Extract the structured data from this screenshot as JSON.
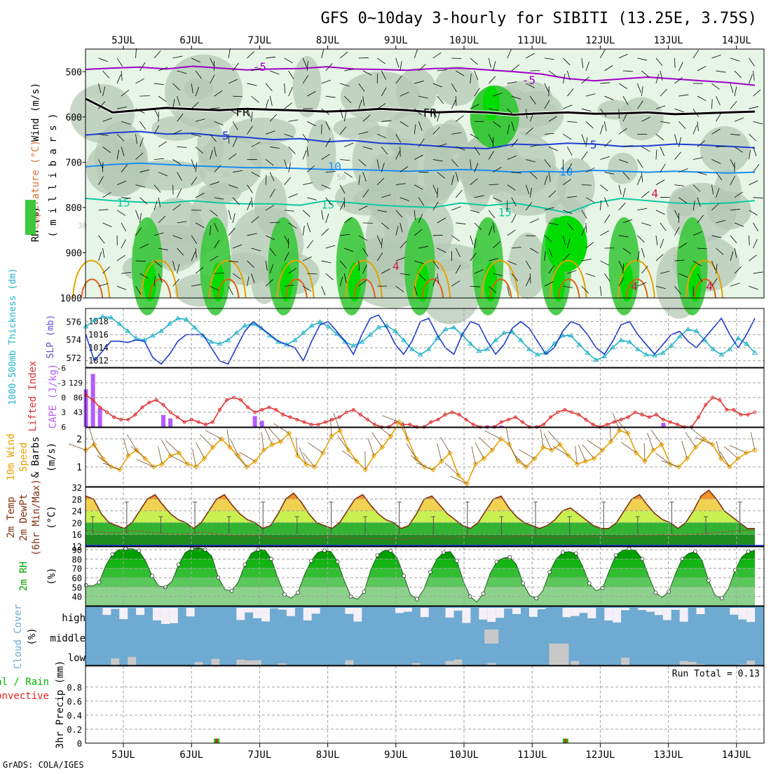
{
  "title": "GFS 0~10day 3-hourly for SIBITI (13.25E, 3.75S)",
  "footer": "GrADS: COLA/IGES",
  "run_total": "Run Total = 0.13",
  "days": [
    "5JUL",
    "6JUL",
    "7JUL",
    "8JUL",
    "9JUL",
    "10JUL",
    "11JUL",
    "12JUL",
    "13JUL",
    "14JUL"
  ],
  "colors": {
    "rh_light": "#e6f5e6",
    "rh_gray": "#b4c8b4",
    "rh_green": "#3cc83c",
    "rh_bright": "#00dc00",
    "t_minus5": "#a000c8",
    "t_fr": "#000000",
    "t_5": "#1e3cd2",
    "t_10": "#1e8cf0",
    "t_15": "#10c8a0",
    "t_20": "#e8a000",
    "t_25": "#e06010",
    "t_30": "#d01450",
    "slp": "#1e3cc8",
    "thickness": "#20b4c8",
    "lifted": "#e03030",
    "cape": "#b45aff",
    "wind": "#e8a000",
    "temp_line": "#803010",
    "dew_line": "#8c5a32",
    "rh2m": "#00a000",
    "cloud_fill": "#6eaad2",
    "cloud_clear": "#f5f0f8",
    "cloud_low": "#c8c8c8",
    "precip_total": "#00c800",
    "precip_conv": "#e02020"
  },
  "labels": {
    "wind_ms": "Wind (m/s)",
    "temperature": "Temperature (°C)",
    "rh_pct": "RH (%)",
    "millibars": "( m i l l i b a r s )",
    "thickness": "1000-500mb Thickness (dm)",
    "slp": "SLP (mb)",
    "lifted": "Lifted Index",
    "cape": "CAPE (J/kg)",
    "wind10m_1": "10m Wind",
    "wind10m_2": "Speed",
    "wind10m_3": "& Barbs",
    "wind10m_4": "(m/s)",
    "temp_1": "2m Temp",
    "temp_2": "2m DewPt",
    "temp_3": "(6hr Min/Max)",
    "temp_4": "(°C)",
    "rh2m_1": "2m RH",
    "rh2m_2": "(%)",
    "cloud_1": "Cloud Cover",
    "cloud_2": "(%)",
    "cloud_high": "high",
    "cloud_middle": "middle",
    "cloud_low": "low",
    "precip_1": "Total / Rain",
    "precip_2": "Convective",
    "precip_3": "3hr Precip (mm)"
  },
  "chart_data": [
    {
      "type": "heatmap",
      "name": "Upper-air cross section",
      "ylabel": "millibars",
      "y_ticks": [
        "500",
        "600",
        "700",
        "800",
        "900",
        "1000"
      ],
      "ylim": [
        1000,
        450
      ],
      "contour_labels": [
        {
          "text": "-5",
          "color": "t_minus5"
        },
        {
          "text": "-5",
          "color": "t_minus5"
        },
        {
          "text": "FR",
          "color": "t_fr"
        },
        {
          "text": "FR",
          "color": "t_fr"
        },
        {
          "text": "5",
          "color": "t_5"
        },
        {
          "text": "5",
          "color": "t_5"
        },
        {
          "text": "10",
          "color": "t_10"
        },
        {
          "text": "10",
          "color": "t_10"
        },
        {
          "text": "15",
          "color": "t_15"
        },
        {
          "text": "15",
          "color": "t_15"
        },
        {
          "text": "15",
          "color": "t_15"
        },
        {
          "text": "30",
          "color": "rh_gray"
        },
        {
          "text": "50",
          "color": "rh_gray"
        },
        {
          "text": "30",
          "color": "rh_gray"
        },
        {
          "text": "50",
          "color": "rh_gray"
        },
        {
          "text": "50",
          "color": "rh_gray"
        },
        {
          "text": "4",
          "color": "t_30"
        },
        {
          "text": "4",
          "color": "t_30"
        },
        {
          "text": "4",
          "color": "t_30"
        },
        {
          "text": "4",
          "color": "t_30"
        }
      ],
      "contours": [
        {
          "name": "-5",
          "color": "t_minus5",
          "p": [
            495,
            492,
            490,
            494,
            488,
            492,
            496,
            494,
            493,
            489,
            494,
            495,
            497,
            493,
            492,
            496,
            500,
            505,
            515,
            520,
            516,
            512,
            516,
            520,
            524,
            530
          ]
        },
        {
          "name": "FR",
          "color": "t_fr",
          "p": [
            560,
            590,
            585,
            580,
            583,
            585,
            582,
            584,
            586,
            588,
            586,
            582,
            585,
            590,
            588,
            590,
            595,
            592,
            590,
            593,
            592,
            590,
            594,
            592,
            590,
            588
          ]
        },
        {
          "name": "5",
          "color": "t_5",
          "p": [
            640,
            635,
            632,
            638,
            636,
            642,
            645,
            650,
            648,
            655,
            652,
            658,
            660,
            664,
            668,
            670,
            660,
            662,
            658,
            660,
            665,
            664,
            660,
            662,
            665,
            668
          ]
        },
        {
          "name": "10",
          "color": "t_10",
          "p": [
            710,
            705,
            702,
            705,
            708,
            710,
            712,
            712,
            714,
            716,
            716,
            718,
            720,
            718,
            716,
            718,
            722,
            720,
            722,
            718,
            720,
            722,
            720,
            722,
            724,
            722
          ]
        },
        {
          "name": "15",
          "color": "t_15",
          "p": [
            780,
            785,
            788,
            790,
            785,
            790,
            792,
            792,
            795,
            785,
            790,
            795,
            798,
            800,
            790,
            796,
            790,
            800,
            812,
            790,
            780,
            785,
            790,
            792,
            790,
            785
          ]
        }
      ],
      "wind_profiles": 36
    },
    {
      "type": "line",
      "name": "SLP and 1000-500mb thickness",
      "series": [
        {
          "name": "SLP (mb)",
          "color": "slp",
          "ylim": [
            1011,
            1020
          ],
          "ticks": [
            "1012",
            "1014",
            "1016",
            "1018"
          ],
          "values": [
            1016,
            1012,
            1013.5,
            1015,
            1015,
            1014.8,
            1015.2,
            1015,
            1012.5,
            1011.5,
            1013,
            1015,
            1016,
            1016,
            1016,
            1014,
            1012,
            1011.5,
            1014,
            1016.5,
            1018,
            1017,
            1016,
            1015,
            1014.5,
            1014,
            1012,
            1015,
            1017.5,
            1018,
            1016.5,
            1015,
            1013,
            1016,
            1018.5,
            1019,
            1017,
            1014.5,
            1013,
            1015,
            1018,
            1018.5,
            1016,
            1014,
            1013,
            1016,
            1018,
            1017.5,
            1015,
            1013,
            1014.5,
            1017,
            1018,
            1017,
            1015,
            1013,
            1014,
            1016.5,
            1018,
            1017.5,
            1016,
            1014,
            1013,
            1015,
            1017.5,
            1018,
            1016,
            1014.5,
            1013,
            1014.5,
            1016,
            1016.5,
            1015,
            1014,
            1015.5,
            1017,
            1018.5,
            1016,
            1014,
            1016,
            1018.5
          ]
        },
        {
          "name": "1000-500mb Thickness (dm)",
          "color": "thickness",
          "ylim": [
            571,
            577.5
          ],
          "ticks": [
            "572",
            "574",
            "576"
          ],
          "values": [
            575.5,
            576.2,
            576.6,
            576.5,
            575.8,
            575.0,
            574.2,
            574.0,
            574.5,
            575.0,
            575.8,
            576.4,
            576.3,
            575.4,
            574.5,
            573.8,
            573.6,
            574.0,
            574.8,
            575.6,
            575.8,
            575.3,
            574.5,
            573.8,
            573.5,
            574.0,
            574.8,
            575.6,
            576.0,
            575.5,
            574.7,
            573.8,
            573.4,
            573.8,
            574.6,
            575.4,
            575.6,
            575.0,
            574.0,
            573.0,
            572.4,
            573.0,
            574.2,
            575.2,
            575.4,
            574.6,
            573.6,
            572.8,
            573.0,
            574.0,
            574.8,
            574.9,
            574.0,
            573.0,
            572.4,
            572.6,
            573.6,
            574.5,
            574.5,
            573.5,
            572.6,
            571.8,
            572.2,
            573.2,
            574.0,
            573.8,
            573.0,
            572.4,
            572.3,
            572.6,
            573.4,
            574.4,
            575.2,
            575.0,
            574.0,
            573.0,
            572.4,
            573.0,
            574.2,
            573.6,
            572.6
          ]
        }
      ]
    },
    {
      "type": "bar",
      "name": "Lifted Index and CAPE",
      "li_ticks": [
        "-6",
        "-3",
        "0",
        "3",
        "6"
      ],
      "cape_ticks": [
        "43",
        "86",
        "129"
      ],
      "li_ylim": [
        -6,
        6
      ],
      "cape_ylim": [
        0,
        172
      ],
      "lifted_index": [
        -0.5,
        0.5,
        2.0,
        3.0,
        4.0,
        4.5,
        4.5,
        3.5,
        2.0,
        1.0,
        0.5,
        1.5,
        3.0,
        4.0,
        5.0,
        4.5,
        5.0,
        5.5,
        5.0,
        2.5,
        0.5,
        0.0,
        0.5,
        2.0,
        3.0,
        2.5,
        2.0,
        2.5,
        3.5,
        4.0,
        4.5,
        5.0,
        5.5,
        5.5,
        5.0,
        4.5,
        4.0,
        3.0,
        2.5,
        3.5,
        4.5,
        5.5,
        6.0,
        6.0,
        5.0,
        5.5,
        5.5,
        6.0,
        6.0,
        5.0,
        4.5,
        3.5,
        3.0,
        3.5,
        4.5,
        5.5,
        6.0,
        6.0,
        6.0,
        5.0,
        4.5,
        4.0,
        5.0,
        6.0,
        6.0,
        5.5,
        4.0,
        3.0,
        2.5,
        3.0,
        3.5,
        4.5,
        5.5,
        6.0,
        5.5,
        5.0,
        4.5,
        4.0,
        3.0,
        3.5,
        4.0,
        3.5,
        4.5,
        5.0,
        5.5,
        6.0,
        6.0,
        4.0,
        1.5,
        0.0,
        0.5,
        2.5,
        2.5,
        3.5,
        3.5,
        3.0
      ],
      "cape": [
        {
          "i": 0,
          "v": 110
        },
        {
          "i": 1,
          "v": 155
        },
        {
          "i": 2,
          "v": 55
        },
        {
          "i": 11,
          "v": 35
        },
        {
          "i": 12,
          "v": 25
        },
        {
          "i": 24,
          "v": 32
        },
        {
          "i": 25,
          "v": 18
        },
        {
          "i": 57,
          "v": 4
        },
        {
          "i": 58,
          "v": 4
        },
        {
          "i": 59,
          "v": 4
        },
        {
          "i": 82,
          "v": 12
        }
      ]
    },
    {
      "type": "line",
      "name": "10m Wind Speed and Barbs",
      "ylim": [
        0.3,
        2.4
      ],
      "ticks": [
        "1",
        "2"
      ],
      "values": [
        1.6,
        1.8,
        1.3,
        1.0,
        0.9,
        1.4,
        1.6,
        1.3,
        1.0,
        1.1,
        1.4,
        1.5,
        1.1,
        1.0,
        1.3,
        1.7,
        2.0,
        1.7,
        1.4,
        1.0,
        1.2,
        1.6,
        1.8,
        1.9,
        2.2,
        1.4,
        1.1,
        1.0,
        1.5,
        2.1,
        2.3,
        1.6,
        1.2,
        0.9,
        1.4,
        1.7,
        2.1,
        2.6,
        2.0,
        1.3,
        1.0,
        0.9,
        1.2,
        1.5,
        0.7,
        0.4,
        1.1,
        1.3,
        1.6,
        2.0,
        1.8,
        1.2,
        1.0,
        1.3,
        1.7,
        1.6,
        1.8,
        1.4,
        1.1,
        1.2,
        1.3,
        1.6,
        1.9,
        2.3,
        2.2,
        1.5,
        1.2,
        1.6,
        1.8,
        1.1,
        1.0,
        1.3,
        1.7,
        2.0,
        1.8,
        1.3,
        1.0,
        1.3,
        1.5,
        1.6
      ]
    },
    {
      "type": "area",
      "name": "2m Temp and DewPt",
      "ylim": [
        12,
        32
      ],
      "ticks": [
        "12",
        "16",
        "20",
        "24",
        "28",
        "32"
      ],
      "temp": [
        29,
        28,
        23,
        20,
        19,
        18,
        20,
        24,
        28,
        29.5,
        26,
        23,
        21,
        20,
        18,
        20,
        24,
        28,
        29.5,
        26,
        23,
        21,
        20,
        18,
        19,
        23,
        28,
        30,
        27,
        23,
        20,
        19,
        18,
        20,
        24,
        28,
        29.5,
        26,
        23,
        21,
        20,
        18,
        19,
        23,
        28,
        29,
        26,
        23,
        21,
        19,
        18,
        20,
        24,
        28,
        29,
        25,
        22,
        20,
        19,
        18,
        19,
        21,
        24,
        25,
        23,
        21,
        19,
        18,
        18,
        20,
        24,
        28,
        29.5,
        26,
        23,
        21,
        20,
        18,
        20,
        24,
        29,
        31,
        28,
        24,
        22,
        20,
        18,
        18
      ],
      "dewpt": [
        17.5,
        17,
        16.8,
        16.5,
        16.6,
        17,
        17.2,
        17,
        16.8,
        16.5,
        16.4,
        16,
        16,
        16.2,
        16.6,
        16.8,
        16.4,
        16,
        15.8,
        15.6,
        15.4,
        15.6,
        15.8,
        15.2,
        14.6,
        14.5,
        14.8,
        15,
        14.6,
        14.8,
        15,
        15.4,
        15.2,
        15,
        14.8,
        14.7,
        14.5,
        14.6,
        14.6,
        14.4,
        14.2,
        14.5,
        14.8,
        15,
        15.2,
        15.0,
        14.8,
        15.0,
        15.3,
        15.4,
        15.2,
        15.0,
        14.8,
        15.0,
        15.2,
        15.4,
        15.6,
        15.4,
        15.2,
        15.0,
        14.8,
        14.9,
        15.1,
        15.3,
        15.4,
        15.2,
        15.0,
        14.8,
        15.0,
        15.2,
        15.4,
        15.6,
        15.8,
        16.0,
        15.8,
        15.6,
        15.8,
        16.0,
        16.2,
        16.4,
        16.6,
        16.8,
        17.0,
        17.2,
        17.4,
        17.6
      ]
    },
    {
      "type": "area",
      "name": "2m RH",
      "ylim": [
        30,
        93
      ],
      "ticks": [
        "40",
        "50",
        "60",
        "70",
        "80",
        "90"
      ],
      "values": [
        52,
        51,
        55,
        73,
        85,
        90,
        91,
        91,
        89,
        78,
        62,
        51,
        50,
        56,
        74,
        87,
        91,
        92,
        90,
        83,
        60,
        47,
        46,
        55,
        74,
        86,
        90,
        90,
        80,
        59,
        42,
        38,
        44,
        63,
        78,
        87,
        89,
        88,
        77,
        57,
        40,
        37,
        45,
        68,
        84,
        89,
        89,
        81,
        62,
        42,
        37,
        47,
        66,
        80,
        87,
        88,
        78,
        56,
        40,
        34,
        43,
        64,
        77,
        81,
        82,
        74,
        54,
        41,
        38,
        46,
        66,
        80,
        87,
        88,
        86,
        72,
        54,
        46,
        49,
        67,
        84,
        89,
        91,
        89,
        80,
        61,
        44,
        39,
        45,
        64,
        80,
        86,
        88,
        79,
        57,
        41,
        38,
        48,
        68,
        82,
        88,
        89
      ]
    },
    {
      "type": "bar",
      "name": "Cloud Cover",
      "levels": [
        "high",
        "middle",
        "low"
      ]
    },
    {
      "type": "bar",
      "name": "3hr Precip",
      "ylim": [
        0,
        1
      ],
      "ticks": [
        "0",
        "0.2",
        "0.4",
        "0.6",
        "0.8"
      ],
      "bars": [
        {
          "day": 1.37,
          "total": 0.065,
          "conv": 0.065
        },
        {
          "day": 6.49,
          "total": 0.065,
          "conv": 0.065
        }
      ]
    }
  ]
}
